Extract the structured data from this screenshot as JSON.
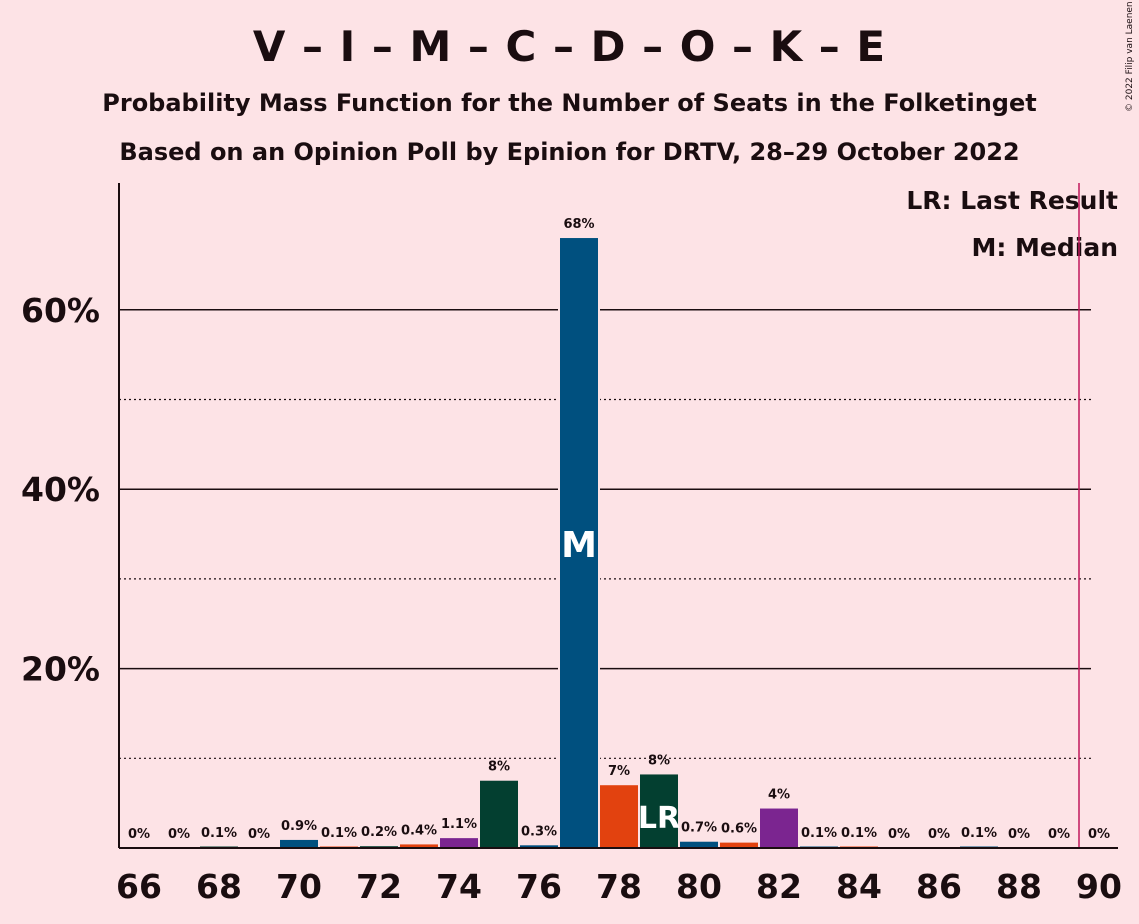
{
  "header": {
    "title": "V – I – M – C – D – O – K – E",
    "subtitle": "Probability Mass Function for the Number of Seats in the Folketinget",
    "subtitle2": "Based on an Opinion Poll by Epinion for DRTV, 28–29 October 2022",
    "copyright": "© 2022 Filip van Laenen"
  },
  "legend": {
    "last_result": "LR: Last Result",
    "median": "M: Median"
  },
  "chart_data": {
    "type": "bar",
    "title": "V – I – M – C – D – O – K – E",
    "x": [
      66,
      67,
      68,
      69,
      70,
      71,
      72,
      73,
      74,
      75,
      76,
      77,
      78,
      79,
      80,
      81,
      82,
      83,
      84,
      85,
      86,
      87,
      88,
      89,
      90
    ],
    "values": [
      0,
      0,
      0.1,
      0,
      0.9,
      0.1,
      0.2,
      0.4,
      1.1,
      7.5,
      0.3,
      68,
      7,
      8.2,
      0.7,
      0.6,
      4.4,
      0.1,
      0.1,
      0,
      0,
      0.1,
      0,
      0,
      0
    ],
    "labels": [
      "0%",
      "0%",
      "0.1%",
      "0%",
      "0.9%",
      "0.1%",
      "0.2%",
      "0.4%",
      "1.1%",
      "8%",
      "0.3%",
      "68%",
      "7%",
      "8%",
      "0.7%",
      "0.6%",
      "4%",
      "0.1%",
      "0.1%",
      "0%",
      "0%",
      "0.1%",
      "0%",
      "0%",
      "0%"
    ],
    "bar_colors": [
      "#00507f",
      "#e2420f",
      "#033f30",
      "#7b2590",
      "#00507f",
      "#e2420f",
      "#033f30",
      "#e2420f",
      "#7b2590",
      "#033f30",
      "#00507f",
      "#00507f",
      "#e2420f",
      "#033f30",
      "#00507f",
      "#e2420f",
      "#7b2590",
      "#00507f",
      "#e2420f",
      "#033f30",
      "#7b2590",
      "#00507f",
      "#e2420f",
      "#033f30",
      "#7b2590"
    ],
    "x_ticks": [
      66,
      68,
      70,
      72,
      74,
      76,
      78,
      80,
      82,
      84,
      86,
      88,
      90
    ],
    "x_tick_labels": [
      "66",
      "68",
      "70",
      "72",
      "74",
      "76",
      "78",
      "80",
      "82",
      "84",
      "86",
      "88",
      "90"
    ],
    "y_ticks": [
      20,
      40,
      60
    ],
    "y_tick_labels": [
      "20%",
      "40%",
      "60%"
    ],
    "y_minor_ticks": [
      10,
      30,
      50
    ],
    "ylim": [
      0,
      75
    ],
    "median_seat": 77,
    "median_label": "M",
    "last_result_seat": 79,
    "last_result_label": "LR",
    "majority_line": 89.5,
    "grid": true,
    "legend_position": "top-right"
  }
}
